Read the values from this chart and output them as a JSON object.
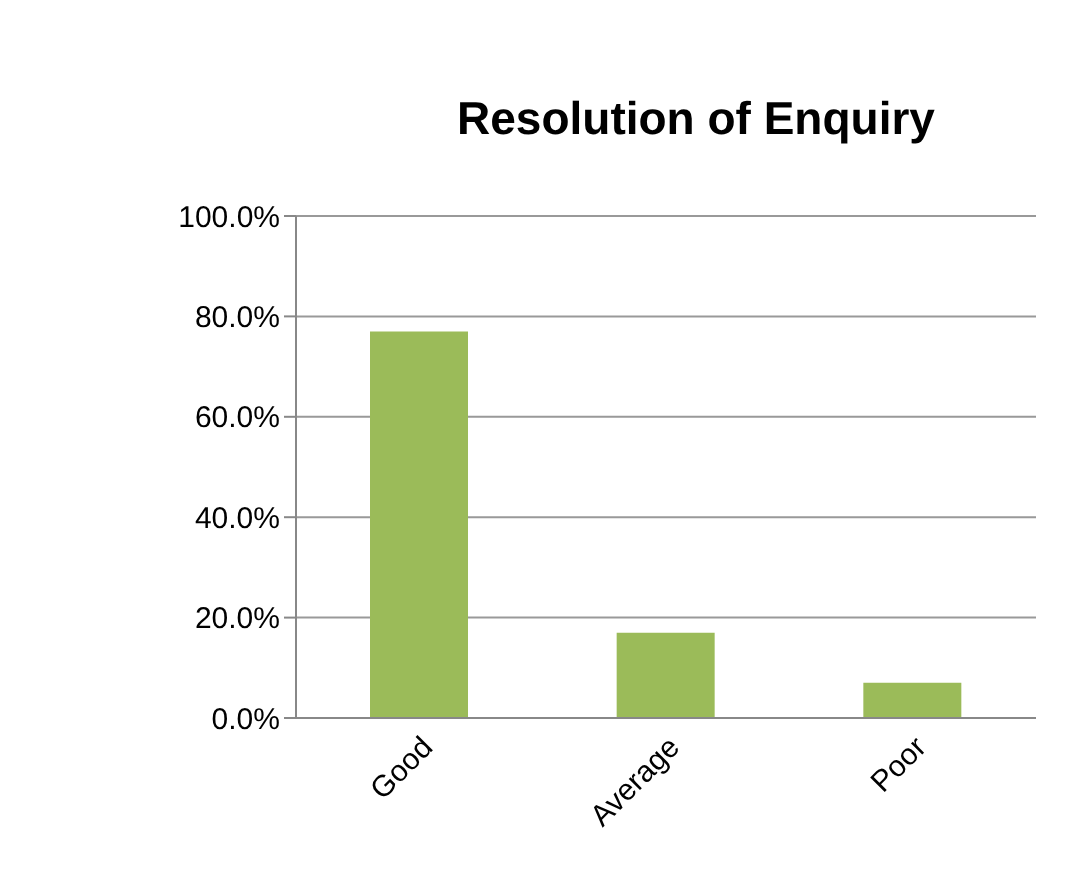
{
  "chart_data": {
    "type": "bar",
    "title": "Resolution of Enquiry",
    "categories": [
      "Good",
      "Average",
      "Poor"
    ],
    "values": [
      77,
      17,
      7
    ],
    "color": "#9bbb59",
    "ylim": [
      0,
      100
    ],
    "yticks": [
      {
        "value": 0,
        "label": "0.0%"
      },
      {
        "value": 20,
        "label": "20.0%"
      },
      {
        "value": 40,
        "label": "40.0%"
      },
      {
        "value": 60,
        "label": "60.0%"
      },
      {
        "value": 80,
        "label": "80.0%"
      },
      {
        "value": 100,
        "label": "100.0%"
      }
    ],
    "grid": "y",
    "legend": false
  }
}
